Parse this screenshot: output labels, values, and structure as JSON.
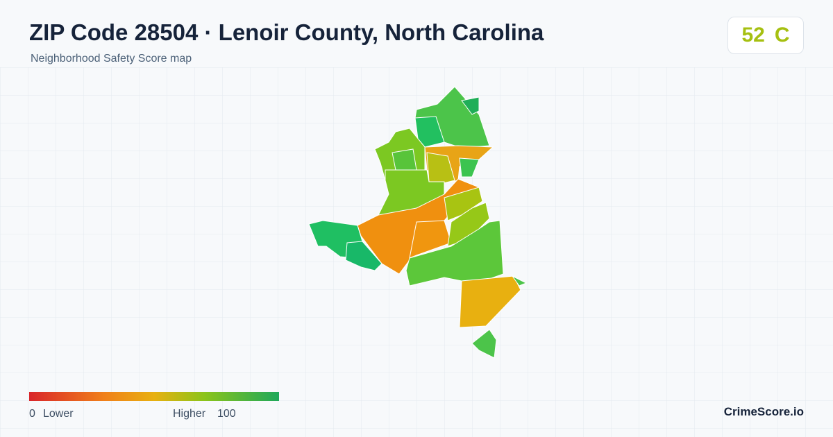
{
  "header": {
    "title": "ZIP Code 28504 · Lenoir County, North Carolina",
    "subtitle": "Neighborhood Safety Score map"
  },
  "score": {
    "value": 52,
    "grade": "C"
  },
  "legend": {
    "min": 0,
    "min_label": "Lower",
    "max_label": "Higher",
    "max": 100
  },
  "brand": "CrimeScore.io"
}
